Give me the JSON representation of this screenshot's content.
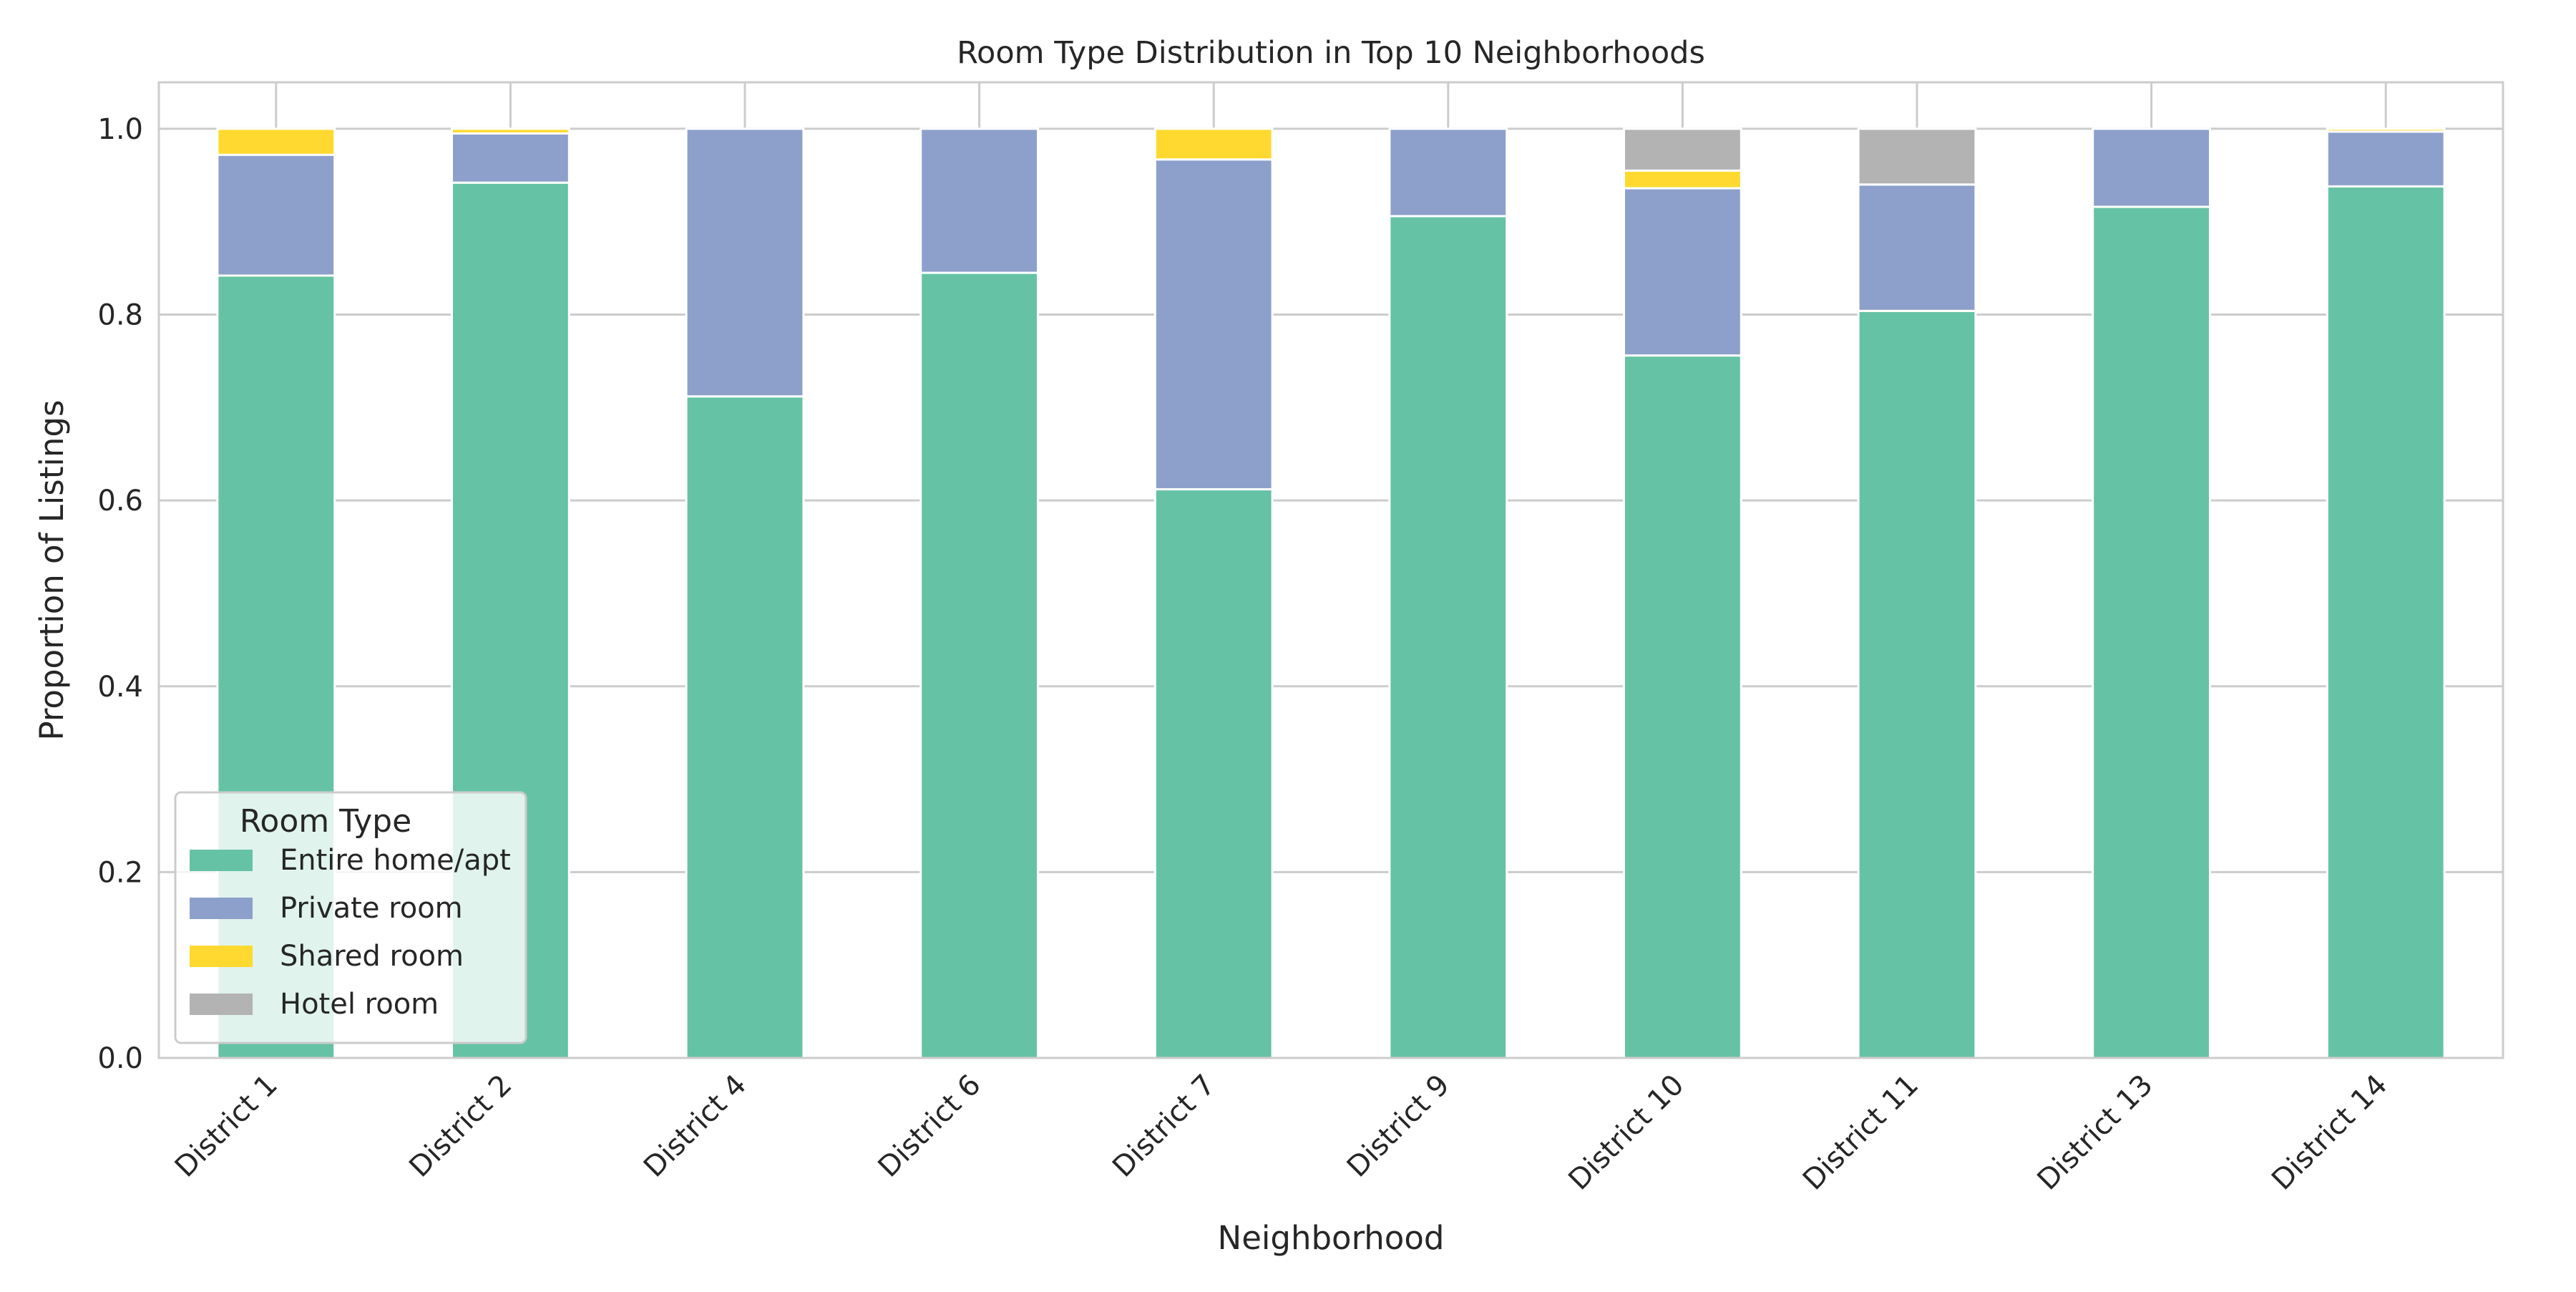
{
  "chart_data": {
    "type": "bar",
    "stacked": true,
    "title": "Room Type Distribution in Top 10 Neighborhoods",
    "xlabel": "Neighborhood",
    "ylabel": "Proportion of Listings",
    "ylim": [
      0,
      1.05
    ],
    "yticks": [
      0.0,
      0.2,
      0.4,
      0.6,
      0.8,
      1.0
    ],
    "ytick_labels": [
      "0.0",
      "0.2",
      "0.4",
      "0.6",
      "0.8",
      "1.0"
    ],
    "grid": true,
    "legend_title": "Room Type",
    "legend_position": "lower-left",
    "categories": [
      "District 1",
      "District 2",
      "District 4",
      "District 6",
      "District 7",
      "District 9",
      "District 10",
      "District 11",
      "District 13",
      "District 14"
    ],
    "series": [
      {
        "name": "Entire home/apt",
        "color": "#66c2a5",
        "values": [
          0.842,
          0.942,
          0.712,
          0.845,
          0.612,
          0.906,
          0.756,
          0.804,
          0.916,
          0.938
        ]
      },
      {
        "name": "Private room",
        "color": "#8da0cb",
        "values": [
          0.13,
          0.053,
          0.288,
          0.155,
          0.355,
          0.094,
          0.18,
          0.136,
          0.084,
          0.059
        ]
      },
      {
        "name": "Shared room",
        "color": "#ffd92f",
        "values": [
          0.028,
          0.005,
          0.0,
          0.0,
          0.033,
          0.0,
          0.019,
          0.0,
          0.0,
          0.003
        ]
      },
      {
        "name": "Hotel room",
        "color": "#b3b3b3",
        "values": [
          0.0,
          0.0,
          0.0,
          0.0,
          0.0,
          0.0,
          0.045,
          0.06,
          0.0,
          0.0
        ]
      }
    ]
  }
}
